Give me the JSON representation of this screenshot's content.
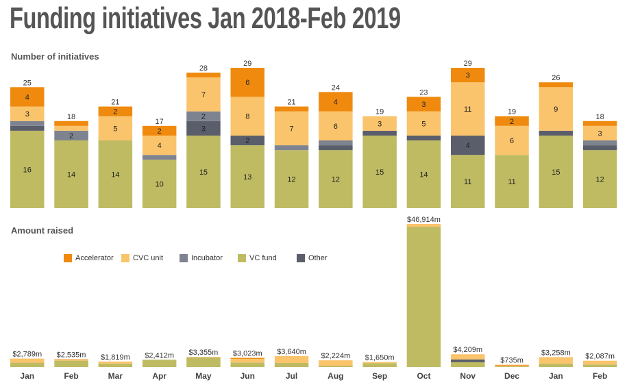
{
  "title": "Funding initiatives Jan 2018-Feb 2019",
  "sections": {
    "initiatives_label": "Number of initiatives",
    "amount_label": "Amount raised"
  },
  "legend": [
    {
      "key": "accelerator",
      "label": "Accelerator",
      "color": "#EF8A0E"
    },
    {
      "key": "cvc",
      "label": "CVC unit",
      "color": "#FAC46C"
    },
    {
      "key": "incubator",
      "label": "Incubator",
      "color": "#7E8390"
    },
    {
      "key": "vc",
      "label": "VC fund",
      "color": "#BFBB63"
    },
    {
      "key": "other",
      "label": "Other",
      "color": "#5A5E6B"
    }
  ],
  "chart_data": [
    {
      "type": "bar",
      "stacked": true,
      "title": "Number of initiatives",
      "categories": [
        "Jan",
        "Feb",
        "Mar",
        "Apr",
        "May",
        "Jun",
        "Jul",
        "Aug",
        "Sep",
        "Oct",
        "Nov",
        "Dec",
        "Jan",
        "Feb"
      ],
      "stack_order": [
        "vc",
        "other",
        "incubator",
        "cvc",
        "accelerator"
      ],
      "series": [
        {
          "name": "VC fund",
          "key": "vc",
          "values": [
            16,
            14,
            14,
            10,
            15,
            13,
            12,
            12,
            15,
            14,
            11,
            11,
            15,
            12
          ]
        },
        {
          "name": "Other",
          "key": "other",
          "values": [
            1,
            0,
            0,
            0,
            3,
            2,
            0,
            1,
            1,
            1,
            4,
            0,
            1,
            1
          ]
        },
        {
          "name": "Incubator",
          "key": "incubator",
          "values": [
            1,
            2,
            0,
            1,
            2,
            0,
            1,
            1,
            0,
            0,
            0,
            0,
            0,
            1
          ]
        },
        {
          "name": "CVC unit",
          "key": "cvc",
          "values": [
            3,
            1,
            5,
            4,
            7,
            8,
            7,
            6,
            3,
            5,
            11,
            6,
            9,
            3
          ]
        },
        {
          "name": "Accelerator",
          "key": "accelerator",
          "values": [
            4,
            1,
            2,
            2,
            1,
            6,
            1,
            4,
            0,
            3,
            3,
            2,
            1,
            1
          ]
        }
      ],
      "totals": [
        25,
        18,
        21,
        17,
        28,
        29,
        21,
        24,
        19,
        23,
        29,
        19,
        26,
        18
      ],
      "segment_labels_min": 2,
      "ylim": [
        0,
        29
      ]
    },
    {
      "type": "bar",
      "stacked": true,
      "title": "Amount raised",
      "units": "$m",
      "categories": [
        "Jan",
        "Feb",
        "Mar",
        "Apr",
        "May",
        "Jun",
        "Jul",
        "Aug",
        "Sep",
        "Oct",
        "Nov",
        "Dec",
        "Jan",
        "Feb"
      ],
      "stack_order": [
        "vc",
        "other",
        "incubator",
        "cvc",
        "accelerator"
      ],
      "series": [
        {
          "name": "VC fund",
          "key": "vc",
          "values": [
            1450,
            2100,
            1150,
            2412,
            3200,
            1500,
            1350,
            450,
            1250,
            46000,
            1600,
            250,
            1150,
            850
          ]
        },
        {
          "name": "Other",
          "key": "other",
          "values": [
            0,
            0,
            0,
            0,
            0,
            0,
            0,
            0,
            0,
            0,
            900,
            0,
            0,
            0
          ]
        },
        {
          "name": "Incubator",
          "key": "incubator",
          "values": [
            0,
            0,
            0,
            0,
            0,
            0,
            0,
            0,
            0,
            0,
            0,
            0,
            0,
            0
          ]
        },
        {
          "name": "CVC unit",
          "key": "cvc",
          "values": [
            1339,
            200,
            669,
            0,
            155,
            1200,
            2290,
            1774,
            400,
            914,
            1709,
            250,
            2108,
            1237
          ]
        },
        {
          "name": "Accelerator",
          "key": "accelerator",
          "values": [
            0,
            235,
            0,
            0,
            0,
            323,
            0,
            0,
            0,
            0,
            0,
            235,
            0,
            0
          ]
        }
      ],
      "total_labels": [
        "$2,789m",
        "$2,535m",
        "$1,819m",
        "$2,412m",
        "$3,355m",
        "$3,023m",
        "$3,640m",
        "$2,224m",
        "$1,650m",
        "$46,914m",
        "$4,209m",
        "$735m",
        "$3,258m",
        "$2,087m"
      ],
      "totals": [
        2789,
        2535,
        1819,
        2412,
        3355,
        3023,
        3640,
        2224,
        1650,
        46914,
        4209,
        735,
        3258,
        2087
      ],
      "ylim": [
        0,
        46914
      ]
    }
  ]
}
